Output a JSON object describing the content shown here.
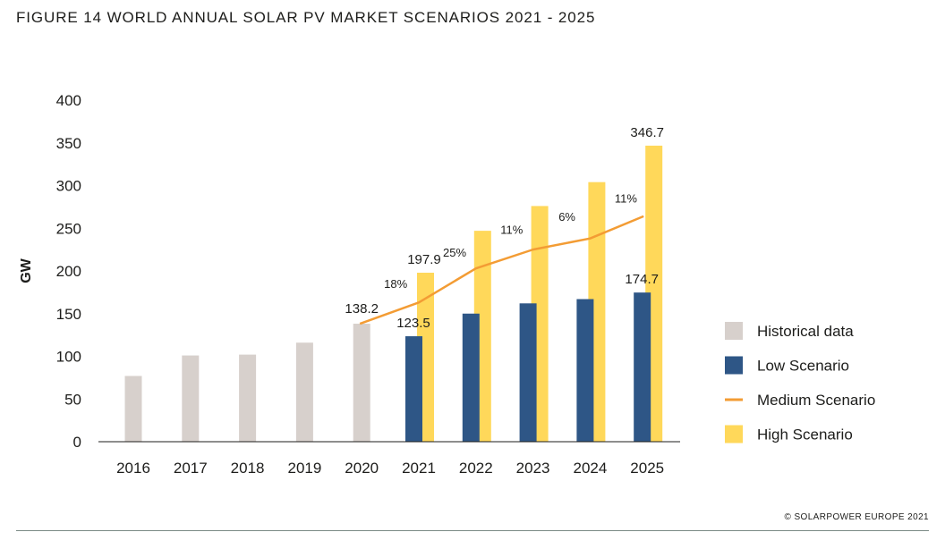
{
  "title": "FIGURE 14 WORLD ANNUAL SOLAR PV MARKET SCENARIOS 2021 - 2025",
  "copyright": "© SOLARPOWER EUROPE 2021",
  "colors": {
    "historical": "#d7d0cc",
    "low": "#2e5686",
    "medium": "#f39c34",
    "high": "#ffd85a",
    "axis": "#1d1d1b"
  },
  "chart_data": {
    "type": "bar",
    "ylabel": "GW",
    "ylim": [
      0,
      400
    ],
    "yticks": [
      0,
      50,
      100,
      150,
      200,
      250,
      300,
      350,
      400
    ],
    "categories": [
      "2016",
      "2017",
      "2018",
      "2019",
      "2020",
      "2021",
      "2022",
      "2023",
      "2024",
      "2025"
    ],
    "series": [
      {
        "name": "Historical data",
        "type": "bar",
        "values": [
          77,
          101,
          102,
          116,
          138.2,
          null,
          null,
          null,
          null,
          null
        ]
      },
      {
        "name": "Low Scenario",
        "type": "bar",
        "values": [
          null,
          null,
          null,
          null,
          null,
          123.5,
          150,
          162,
          167,
          174.7
        ]
      },
      {
        "name": "Medium Scenario",
        "type": "line",
        "values": [
          null,
          null,
          null,
          null,
          138.2,
          163,
          203,
          225,
          238,
          264
        ]
      },
      {
        "name": "High Scenario",
        "type": "bar",
        "values": [
          null,
          null,
          null,
          null,
          null,
          197.9,
          247,
          276,
          304,
          346.7
        ]
      }
    ],
    "data_labels": [
      "138.2",
      "123.5",
      "197.9",
      "174.7",
      "346.7"
    ],
    "growth_labels": [
      "18%",
      "25%",
      "11%",
      "6%",
      "11%"
    ],
    "legend_position": "right"
  }
}
